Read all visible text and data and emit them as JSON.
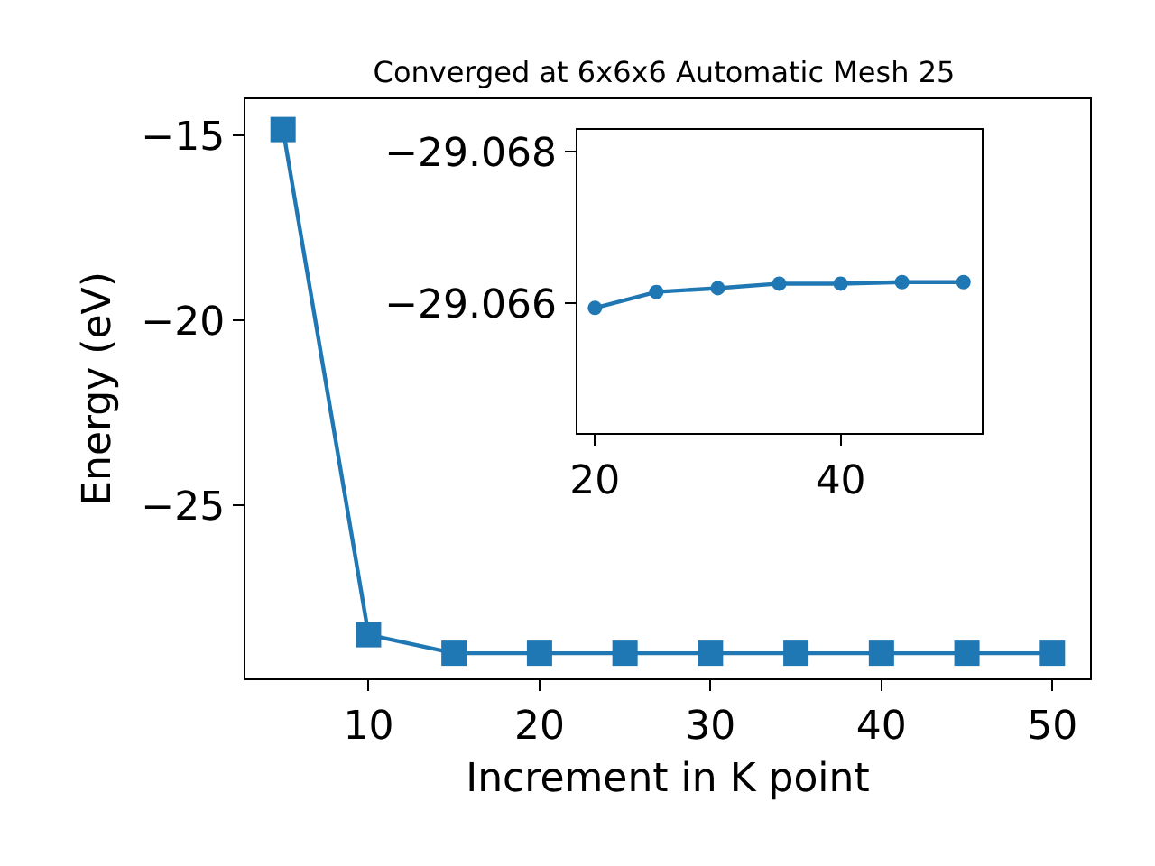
{
  "chart_data": [
    {
      "type": "line",
      "title": "Converged at 6x6x6 Automatic Mesh 25",
      "xlabel": "Increment in K point",
      "ylabel": "Energy (eV)",
      "x": [
        5,
        10,
        15,
        20,
        25,
        30,
        35,
        40,
        45,
        50
      ],
      "series": [
        {
          "color": "#1f77b4",
          "values": [
            -14.84,
            -28.5,
            -29.0,
            -29.0,
            -29.0,
            -29.0,
            -29.0,
            -29.0,
            -29.0,
            -29.0
          ]
        }
      ],
      "xlim": [
        2.8,
        52.2
      ],
      "xticks": [
        10,
        20,
        30,
        40,
        50
      ],
      "ylim": [
        -29.68,
        -14.02
      ],
      "yticks": [
        {
          "value": -15,
          "label": "−15"
        },
        {
          "value": -20,
          "label": "−20"
        },
        {
          "value": -25,
          "label": "−25"
        }
      ],
      "marker": "square",
      "line_style": "solid"
    },
    {
      "type": "line",
      "x": [
        20,
        25,
        30,
        35,
        40,
        45,
        50
      ],
      "series": [
        {
          "color": "#1f77b4",
          "values": [
            -29.06594,
            -29.06615,
            -29.0662,
            -29.06626,
            -29.06626,
            -29.06628,
            -29.06628
          ]
        }
      ],
      "xlim": [
        18.57,
        51.5
      ],
      "xticks": [
        20,
        40
      ],
      "ylim": [
        -29.06429,
        -29.06829
      ],
      "yticks": [
        {
          "value": -29.068,
          "label": "−29.068"
        },
        {
          "value": -29.066,
          "label": "−29.066"
        }
      ],
      "marker": "circle",
      "line_style": "solid"
    }
  ]
}
